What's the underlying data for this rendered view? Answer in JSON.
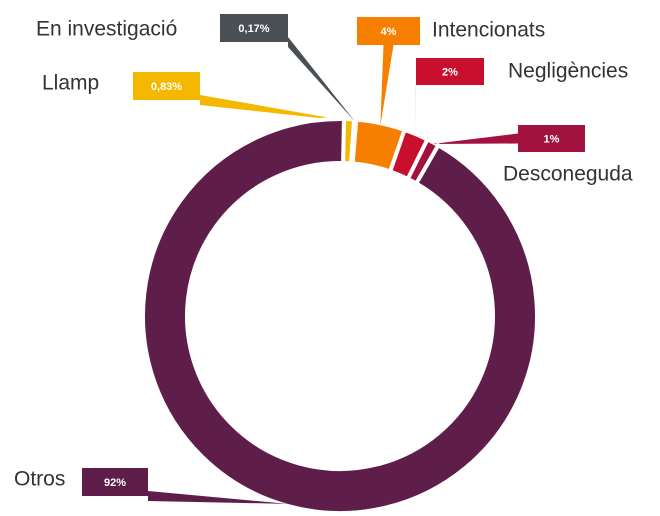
{
  "chart_data": {
    "type": "donut",
    "categories": [
      "Llamp",
      "En investigació",
      "Intencionats",
      "Negligències",
      "Desconeguda",
      "Otros"
    ],
    "values": [
      0.83,
      0.17,
      4,
      2,
      1,
      92
    ],
    "value_labels": [
      "0,83%",
      "0,17%",
      "4%",
      "2%",
      "1%",
      "92%"
    ],
    "colors": [
      "#f5b800",
      "#4a4f55",
      "#f77f00",
      "#c8102e",
      "#a3123f",
      "#5f1e49"
    ]
  }
}
